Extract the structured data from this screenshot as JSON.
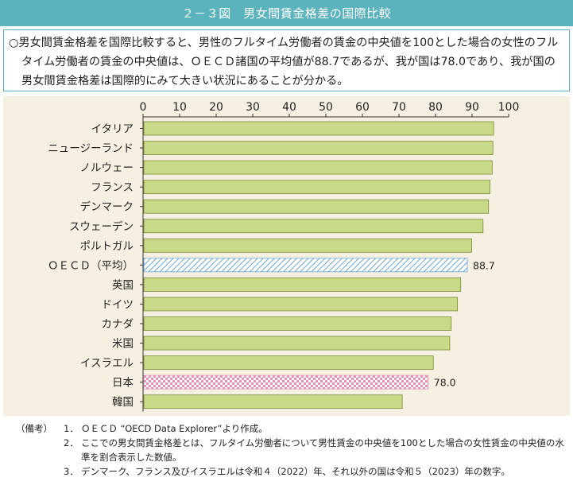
{
  "header": {
    "title": "２－３図　男女間賃金格差の国際比較"
  },
  "summary": {
    "text": "○男女間賃金格差を国際比較すると、男性のフルタイム労働者の賃金の中央値を100とした場合の女性のフルタイム労働者の賃金の中央値は、ＯＥＣＤ諸国の平均値が88.7であるが、我が国は78.0であり、我が国の男女間賃金格差は国際的にみて大きい状況にあることが分かる。"
  },
  "colors": {
    "bar_fill": "#c8d987",
    "bar_stroke": "#7a8c3a",
    "oecd_hatch": "#6aa6d6",
    "japan_check": "#e890b8",
    "panel_bg": "#f6f0e2",
    "accent": "#5bb3bd"
  },
  "chart_data": {
    "type": "bar",
    "orientation": "horizontal",
    "xlim": [
      0,
      100
    ],
    "xticks": [
      "0",
      "10",
      "20",
      "30",
      "40",
      "50",
      "60",
      "70",
      "80",
      "90",
      "100"
    ],
    "categories": [
      "イタリア",
      "ニュージーランド",
      "ノルウェー",
      "フランス",
      "デンマーク",
      "スウェーデン",
      "ポルトガル",
      "ＯＥＣＤ（平均）",
      "英国",
      "ドイツ",
      "カナダ",
      "米国",
      "イスラエル",
      "日本",
      "韓国"
    ],
    "values": [
      95.9,
      95.7,
      95.5,
      94.9,
      94.5,
      93.0,
      89.9,
      88.7,
      86.9,
      86.0,
      84.3,
      83.9,
      79.4,
      78.0,
      70.9
    ],
    "styles": [
      "solid",
      "solid",
      "solid",
      "solid",
      "solid",
      "solid",
      "solid",
      "hatch",
      "solid",
      "solid",
      "solid",
      "solid",
      "solid",
      "check",
      "solid"
    ],
    "data_labels": [
      "",
      "",
      "",
      "",
      "",
      "",
      "",
      "88.7",
      "",
      "",
      "",
      "",
      "",
      "78.0",
      ""
    ]
  },
  "notes": {
    "head": "（備考）",
    "items": [
      {
        "num": "1．",
        "text": "ＯＥＣＤ “OECD Data Explorer”より作成。"
      },
      {
        "num": "2．",
        "text": "ここでの男女間賃金格差とは、フルタイム労働者について男性賃金の中央値を100とした場合の女性賃金の中央値の水準を割合表示した数値。"
      },
      {
        "num": "3．",
        "text": "デンマーク、フランス及びイスラエルは令和４（2022）年、それ以外の国は令和５（2023）年の数字。"
      }
    ]
  }
}
